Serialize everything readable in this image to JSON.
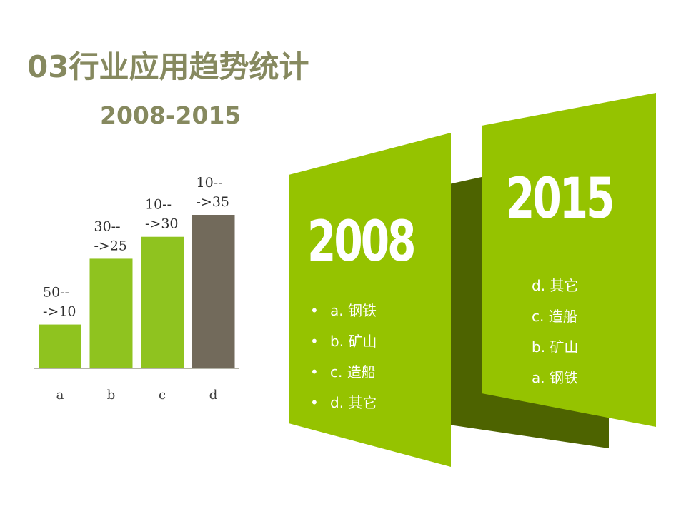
{
  "title": "03行业应用趋势统计",
  "subtitle": "2008-2015",
  "chart_data": {
    "type": "bar",
    "categories": [
      "a",
      "b",
      "c",
      "d"
    ],
    "values": [
      10,
      25,
      30,
      35
    ],
    "data_labels": [
      [
        "50--",
        "->10"
      ],
      [
        "30--",
        "->25"
      ],
      [
        "10--",
        "->30"
      ],
      [
        "10--",
        "->35"
      ]
    ],
    "colors": [
      "#8fc31f",
      "#8fc31f",
      "#8fc31f",
      "#726a5b"
    ],
    "ylim": [
      0,
      35
    ],
    "title": "",
    "xlabel": "",
    "ylabel": "",
    "grid": false
  },
  "panels": {
    "left": {
      "year": "2008",
      "items": [
        "a. 钢铁",
        "b. 矿山",
        "c. 造船",
        "d. 其它"
      ],
      "bullet": "•"
    },
    "right": {
      "year": "2015",
      "items": [
        "d. 其它",
        "c. 造船",
        "b. 矿山",
        "a. 钢铁"
      ]
    },
    "colors": {
      "light_green": "#95c300",
      "dark_green": "#4d6300"
    }
  }
}
